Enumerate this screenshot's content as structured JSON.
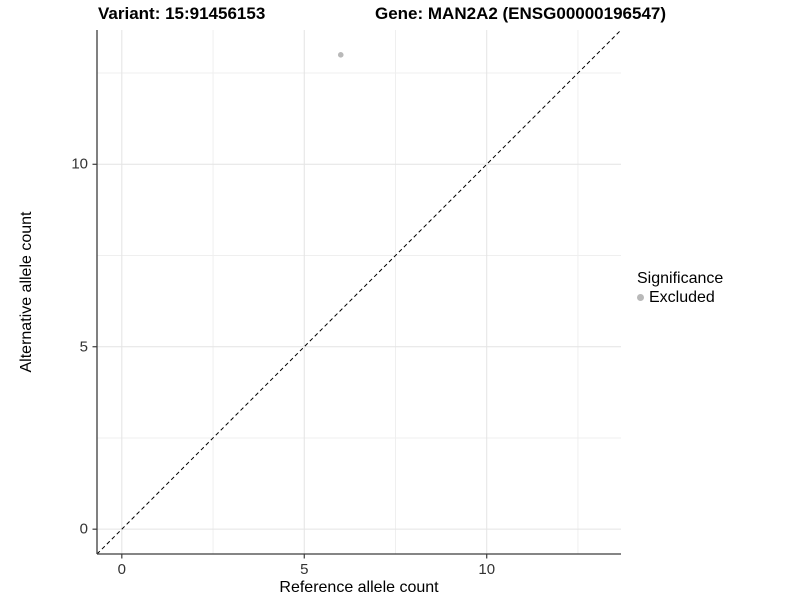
{
  "titles": {
    "left": "Variant: 15:91456153",
    "right": "Gene: MAN2A2 (ENSG00000196547)"
  },
  "chart_data": {
    "type": "scatter",
    "xlabel": "Reference allele count",
    "ylabel": "Alternative allele count",
    "xlim": [
      -0.68,
      13.68
    ],
    "ylim": [
      -0.68,
      13.68
    ],
    "x_major_ticks": [
      0,
      5,
      10
    ],
    "y_major_ticks": [
      0,
      5,
      10
    ],
    "x_minor_gridlines": [
      2.5,
      7.5,
      12.5
    ],
    "y_minor_gridlines": [
      2.5,
      7.5,
      12.5
    ],
    "grid": true,
    "points": [
      {
        "x": 6,
        "y": 13,
        "series": "Excluded"
      }
    ],
    "reference_line": {
      "style": "dashed",
      "slope": 1,
      "intercept": 0
    },
    "legend": {
      "title": "Significance",
      "position": "right",
      "items": [
        {
          "label": "Excluded",
          "color": "#b9b9b9"
        }
      ]
    },
    "colors": {
      "point": "#b9b9b9",
      "major_grid": "#e4e4e4",
      "minor_grid": "#efefef",
      "axis_line": "#3c3c3c",
      "reference_line": "#000000",
      "tick_label": "#333333"
    }
  }
}
